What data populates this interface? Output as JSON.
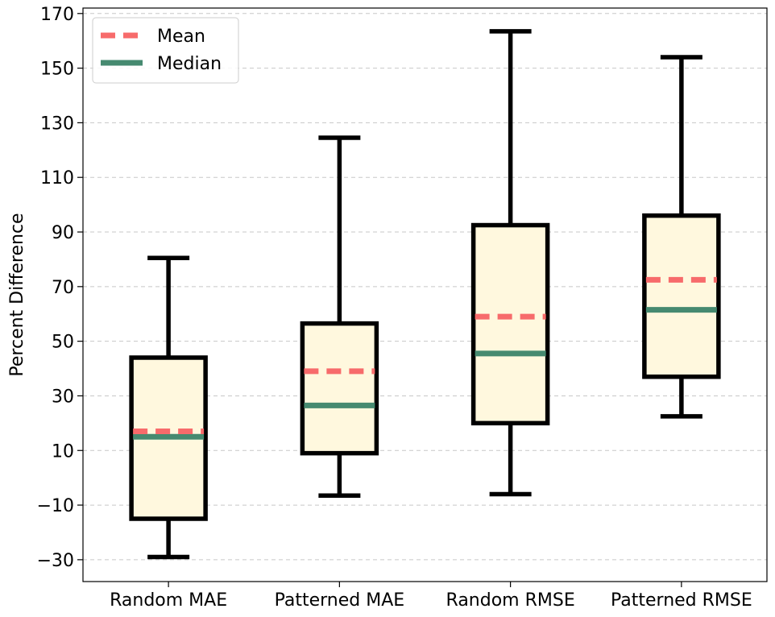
{
  "chart_data": {
    "type": "box",
    "title": "",
    "xlabel": "",
    "ylabel": "Percent Difference",
    "ylim": [
      -38,
      172
    ],
    "yticks": [
      -30,
      -10,
      10,
      30,
      50,
      70,
      90,
      110,
      130,
      150,
      170
    ],
    "grid": "y-dashed",
    "legend": {
      "placement": "top-left",
      "entries": [
        {
          "label": "Mean",
          "style": "dashed",
          "color": "#f76b6b"
        },
        {
          "label": "Median",
          "style": "solid",
          "color": "#468a70"
        }
      ]
    },
    "colors": {
      "box_fill": "#fff8de",
      "box_edge": "#000000",
      "mean": "#f76b6b",
      "median": "#468a70",
      "grid": "#c7c7c7"
    },
    "categories": [
      "Random MAE",
      "Patterned MAE",
      "Random RMSE",
      "Patterned RMSE"
    ],
    "boxes": [
      {
        "name": "Random MAE",
        "whisker_low": -29,
        "q1": -15,
        "median": 15,
        "mean": 17,
        "q3": 44,
        "whisker_high": 80.5
      },
      {
        "name": "Patterned MAE",
        "whisker_low": -6.5,
        "q1": 9,
        "median": 26.5,
        "mean": 39,
        "q3": 56.5,
        "whisker_high": 124.5
      },
      {
        "name": "Random RMSE",
        "whisker_low": -6,
        "q1": 20,
        "median": 45.5,
        "mean": 59,
        "q3": 92.5,
        "whisker_high": 163.5
      },
      {
        "name": "Patterned RMSE",
        "whisker_low": 22.5,
        "q1": 37,
        "median": 61.5,
        "mean": 72.5,
        "q3": 96,
        "whisker_high": 154
      }
    ]
  }
}
